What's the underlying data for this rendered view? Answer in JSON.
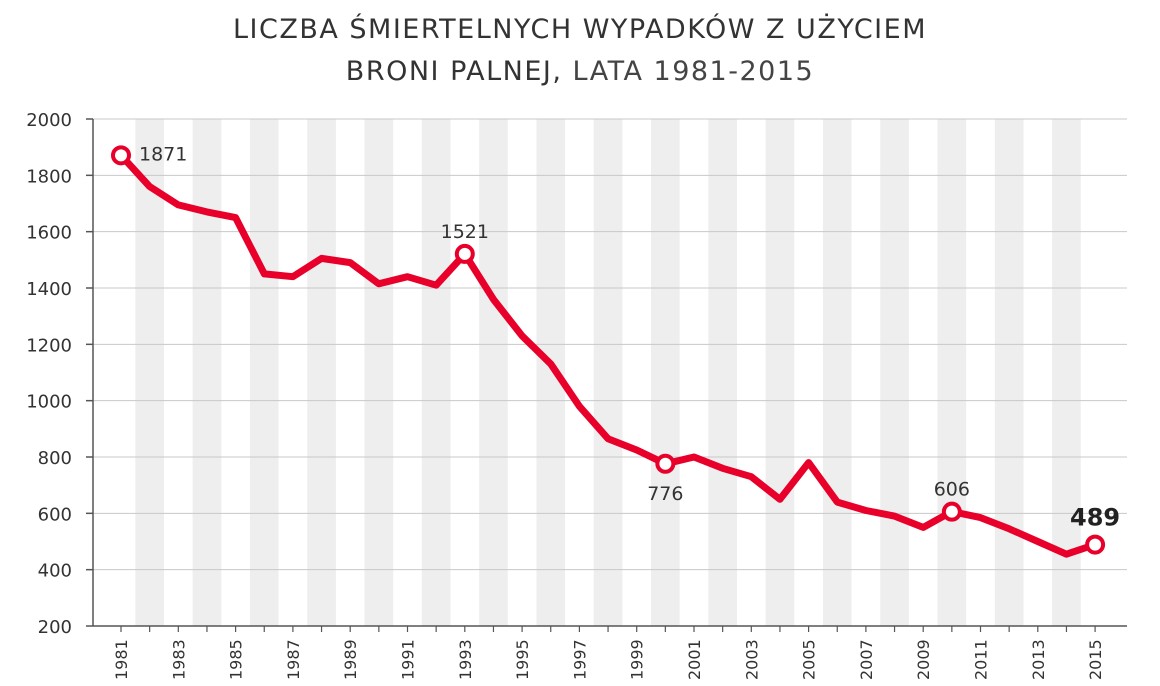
{
  "title_line1": "LICZBA ŚMIERTELNYCH WYPADKÓW Z UŻYCIEM",
  "title_line2_bold": "BRONI PALNEJ,",
  "title_line2_light": " LATA 1981-2015",
  "colors": {
    "line": "#e8002a",
    "band": "#eeeeee",
    "grid": "#c8c8c8",
    "axis": "#555555",
    "text": "#333333"
  },
  "chart_data": {
    "type": "line",
    "title": "LICZBA ŚMIERTELNYCH WYPADKÓW Z UŻYCIEM BRONI PALNEJ, LATA 1981-2015",
    "xlabel": "",
    "ylabel": "",
    "ylim": [
      200,
      2000
    ],
    "yticks": [
      200,
      400,
      600,
      800,
      1000,
      1200,
      1400,
      1600,
      1800,
      2000
    ],
    "xlim": [
      1981,
      2015
    ],
    "xticks": [
      1981,
      1983,
      1985,
      1987,
      1989,
      1991,
      1993,
      1995,
      1997,
      1999,
      2001,
      2003,
      2005,
      2007,
      2009,
      2011,
      2013,
      2015
    ],
    "grid": true,
    "x": [
      1981,
      1982,
      1983,
      1984,
      1985,
      1986,
      1987,
      1988,
      1989,
      1990,
      1991,
      1992,
      1993,
      1994,
      1995,
      1996,
      1997,
      1998,
      1999,
      2000,
      2001,
      2002,
      2003,
      2004,
      2005,
      2006,
      2007,
      2008,
      2009,
      2010,
      2011,
      2012,
      2013,
      2014,
      2015
    ],
    "values": [
      1871,
      1760,
      1695,
      1670,
      1650,
      1450,
      1440,
      1505,
      1490,
      1415,
      1440,
      1410,
      1521,
      1360,
      1230,
      1130,
      980,
      865,
      825,
      776,
      800,
      760,
      730,
      650,
      780,
      640,
      610,
      590,
      550,
      606,
      585,
      545,
      500,
      455,
      489
    ],
    "annotations": [
      {
        "year": 1981,
        "value": 1871,
        "label": "1871",
        "position": "right"
      },
      {
        "year": 1993,
        "value": 1521,
        "label": "1521",
        "position": "above"
      },
      {
        "year": 2000,
        "value": 776,
        "label": "776",
        "position": "below"
      },
      {
        "year": 2010,
        "value": 606,
        "label": "606",
        "position": "above"
      },
      {
        "year": 2015,
        "value": 489,
        "label": "489",
        "position": "above",
        "bold": true
      }
    ]
  }
}
